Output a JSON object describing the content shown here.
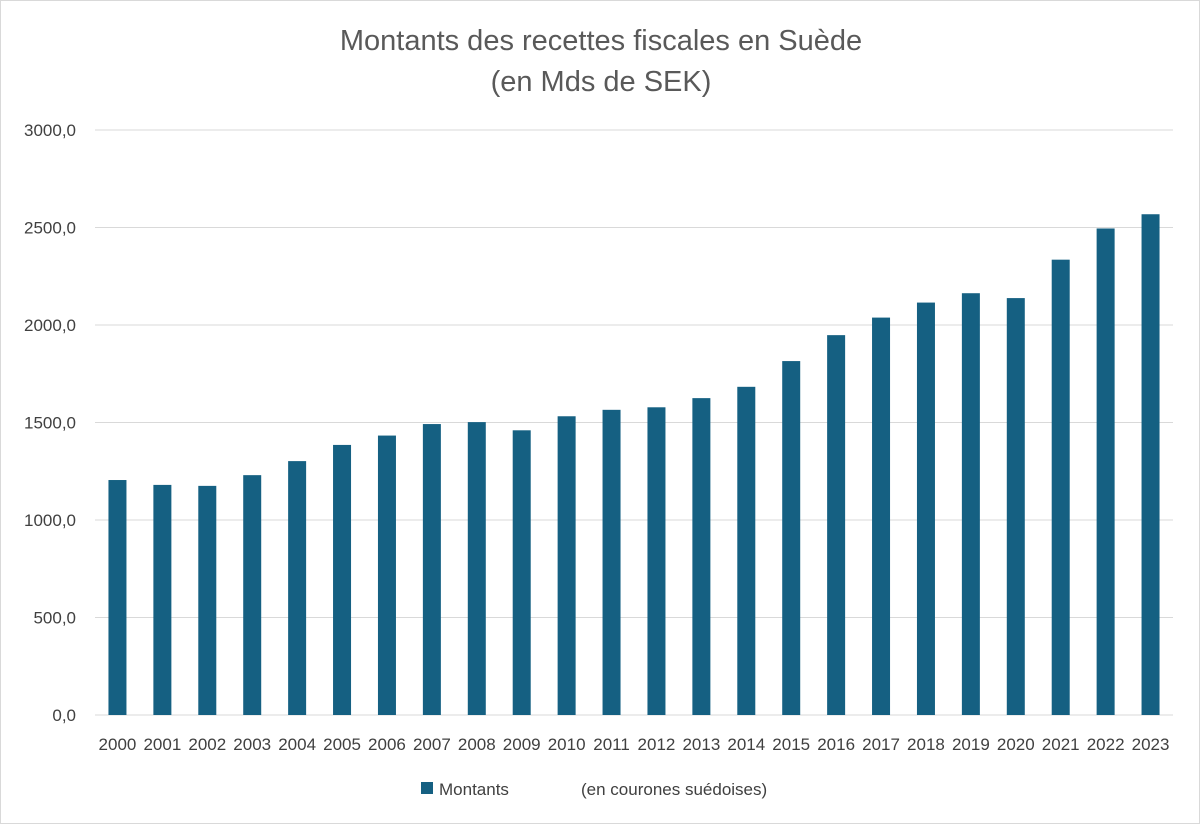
{
  "chart_data": {
    "type": "bar",
    "title": "Montants des recettes fiscales en Suède",
    "subtitle": "(en Mds de SEK)",
    "categories": [
      "2000",
      "2001",
      "2002",
      "2003",
      "2004",
      "2005",
      "2006",
      "2007",
      "2008",
      "2009",
      "2010",
      "2011",
      "2012",
      "2013",
      "2014",
      "2015",
      "2016",
      "2017",
      "2018",
      "2019",
      "2020",
      "2021",
      "2022",
      "2023"
    ],
    "series": [
      {
        "name": "Montants",
        "values": [
          1205,
          1180,
          1175,
          1230,
          1302,
          1385,
          1433,
          1492,
          1502,
          1460,
          1532,
          1565,
          1578,
          1625,
          1683,
          1815,
          1948,
          2038,
          2115,
          2163,
          2138,
          2335,
          2495,
          2568
        ]
      }
    ],
    "legend_note": "(en courones suédoises)",
    "ylim": [
      0,
      3000
    ],
    "yticks": [
      0,
      500,
      1000,
      1500,
      2000,
      2500,
      3000
    ],
    "ytick_labels": [
      "0,0",
      "500,0",
      "1000,0",
      "1500,0",
      "2000,0",
      "2500,0",
      "3000,0"
    ],
    "grid": true,
    "legend_position": "bottom",
    "bar_color": "#156082",
    "grid_color": "#d9d9d9"
  }
}
